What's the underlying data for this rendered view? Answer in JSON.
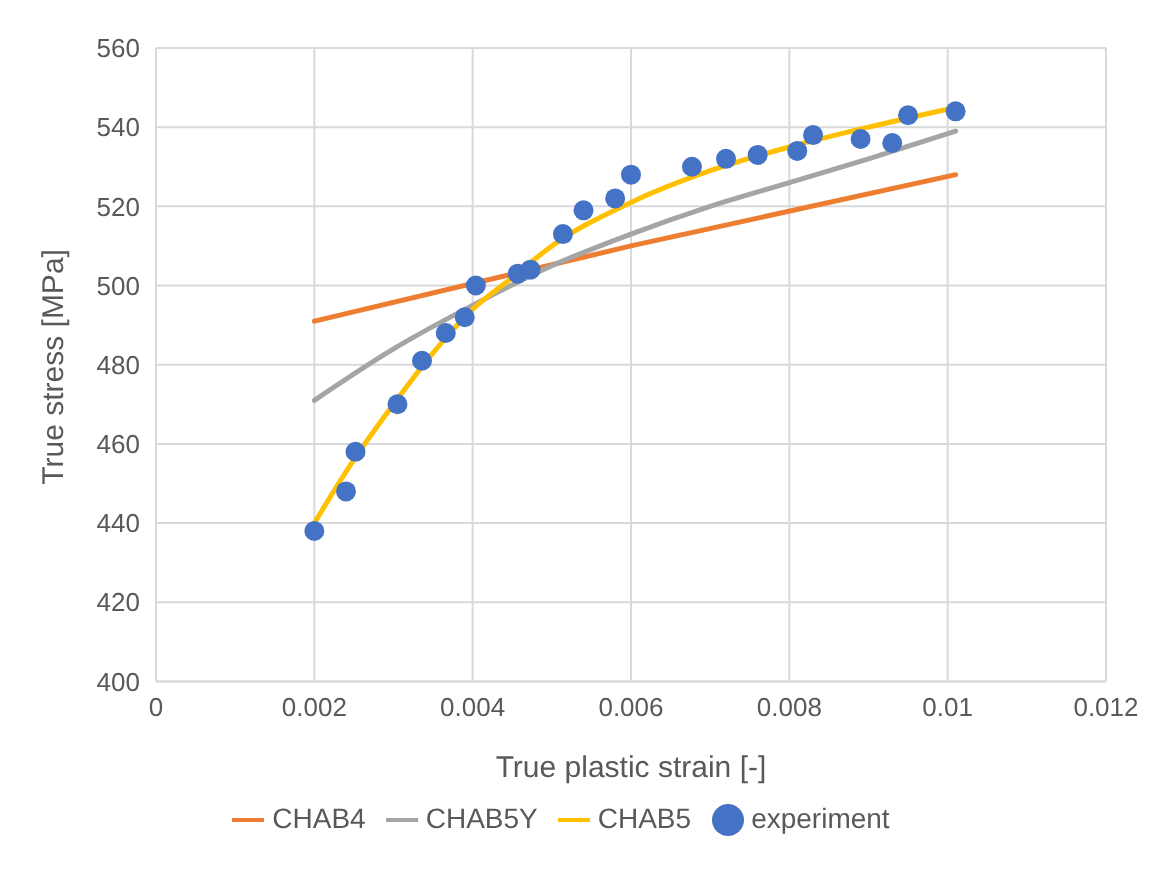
{
  "chart_data": {
    "type": "line",
    "xlabel": "True plastic strain [-]",
    "ylabel": "True stress [MPa]",
    "xlim": [
      0,
      0.012
    ],
    "xticks": [
      0,
      0.002,
      0.004,
      0.006,
      0.008,
      0.01,
      0.012
    ],
    "ylim": [
      400,
      560
    ],
    "yticks": [
      400,
      420,
      440,
      460,
      480,
      500,
      520,
      540,
      560
    ],
    "grid": true,
    "legend": "bottom",
    "marker": "none",
    "series": [
      {
        "name": "CHAB4",
        "color": "#ed7d31",
        "x": [
          0.002,
          0.006,
          0.0101
        ],
        "values": [
          491,
          510,
          528
        ]
      },
      {
        "name": "CHAB5Y",
        "color": "#a5a5a5",
        "x": [
          0.002,
          0.003,
          0.004,
          0.005,
          0.006,
          0.007,
          0.008,
          0.009,
          0.0101
        ],
        "values": [
          471,
          484,
          495,
          505,
          513,
          520,
          526,
          532,
          539
        ]
      },
      {
        "name": "CHAB5",
        "color": "#ffc000",
        "x": [
          0.002,
          0.0025,
          0.003,
          0.0035,
          0.004,
          0.0045,
          0.005,
          0.006,
          0.007,
          0.008,
          0.009,
          0.0101
        ],
        "values": [
          440,
          456,
          470,
          483,
          494,
          502,
          510,
          521,
          529,
          535,
          540,
          545
        ]
      },
      {
        "name": "experiment",
        "type": "scatter",
        "color": "#4472c4",
        "marker": "circle",
        "x": [
          0.002,
          0.0024,
          0.00252,
          0.00305,
          0.00336,
          0.00366,
          0.0039,
          0.00404,
          0.00457,
          0.00473,
          0.00514,
          0.0054,
          0.0058,
          0.006,
          0.00677,
          0.0072,
          0.0076,
          0.0081,
          0.0083,
          0.0089,
          0.0093,
          0.0095,
          0.0101
        ],
        "values": [
          438,
          448,
          458,
          470,
          481,
          488,
          492,
          500,
          503,
          504,
          513,
          519,
          522,
          528,
          530,
          532,
          533,
          534,
          538,
          537,
          536,
          543,
          544
        ]
      }
    ]
  }
}
